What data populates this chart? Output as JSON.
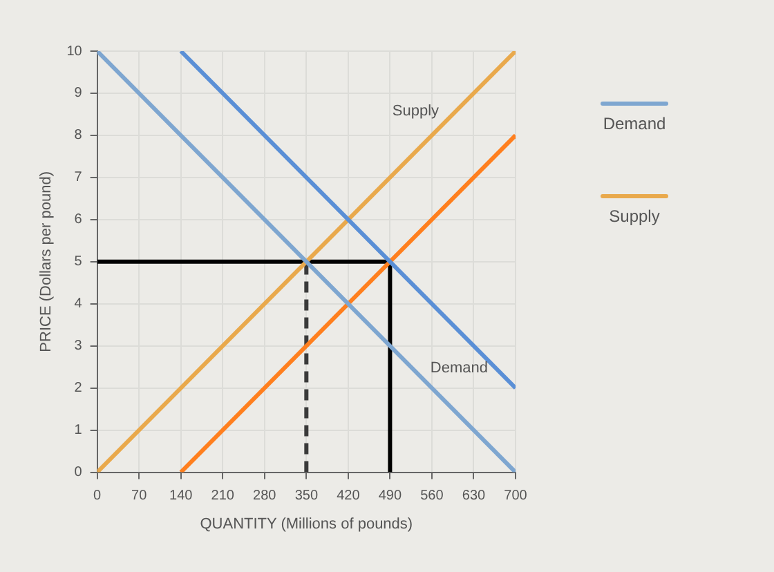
{
  "chart_data": {
    "type": "line",
    "xlabel": "QUANTITY (Millions of pounds)",
    "ylabel": "PRICE (Dollars per pound)",
    "xlim": [
      0,
      700
    ],
    "ylim": [
      0,
      10
    ],
    "xticks": [
      0,
      70,
      140,
      210,
      280,
      350,
      420,
      490,
      560,
      630,
      700
    ],
    "yticks": [
      0,
      1,
      2,
      3,
      4,
      5,
      6,
      7,
      8,
      9,
      10
    ],
    "grid": true,
    "legend": "right",
    "series": [
      {
        "name": "Demand",
        "color": "#7ea6d0",
        "x": [
          0,
          700
        ],
        "values": [
          10,
          0
        ]
      },
      {
        "color": "#5a8fd6",
        "x": [
          140,
          700
        ],
        "values": [
          10,
          2
        ]
      },
      {
        "name": "Supply",
        "color": "#e9a94c",
        "x": [
          0,
          700
        ],
        "values": [
          0,
          10
        ]
      },
      {
        "color": "#ff7f1e",
        "x": [
          140,
          700
        ],
        "values": [
          0,
          8
        ]
      },
      {
        "color": "#000000",
        "x": [
          0,
          490
        ],
        "values": [
          5,
          5
        ]
      },
      {
        "color": "#000000",
        "x": [
          490,
          490
        ],
        "values": [
          0,
          5
        ]
      },
      {
        "color": "#3a3a3a",
        "x": [
          350,
          350
        ],
        "values": [
          0,
          5
        ],
        "line_style": "dashed"
      }
    ],
    "annotations": [
      {
        "text": "Supply",
        "x": 581,
        "y": 8.3
      },
      {
        "text": "Demand",
        "x": 546,
        "y": 2.2
      }
    ]
  }
}
